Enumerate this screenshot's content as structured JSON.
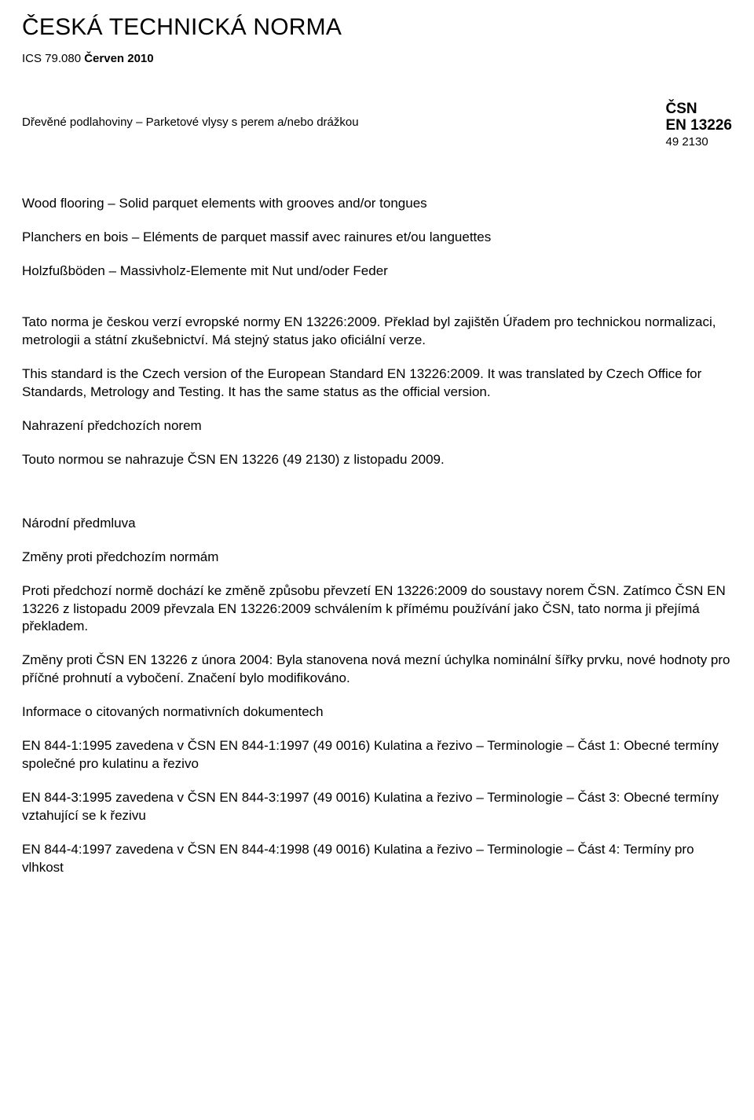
{
  "header": {
    "title": "ČESKÁ TECHNICKÁ NORMA",
    "ics_prefix": "ICS 79.080 ",
    "ics_bold": "Červen 2010",
    "subtitle": "Dřevěné podlahoviny – Parketové vlysy s perem a/nebo drážkou",
    "code_csn": "ČSN",
    "code_en": "EN 13226",
    "code_num": "49 2130"
  },
  "body": {
    "p1": "Wood flooring – Solid parquet elements with grooves and/or tongues",
    "p2": "Planchers en bois – Eléments de parquet massif avec rainures et/ou languettes",
    "p3": "Holzfußböden – Massivholz-Elemente mit Nut und/oder Feder",
    "p4": "Tato norma je českou verzí evropské normy EN 13226:2009. Překlad byl zajištěn Úřadem pro technickou normalizaci, metrologii a státní zkušebnictví. Má stejný status jako oficiální verze.",
    "p5": "This standard is the Czech version of the European Standard EN 13226:2009. It was translated by Czech Office for Standards, Metrology and Testing. It has the same status as the official version.",
    "p6": "Nahrazení předchozích norem",
    "p7": "Touto normou se nahrazuje ČSN EN 13226 (49 2130) z listopadu 2009.",
    "p8": "Národní předmluva",
    "p9": "Změny proti předchozím normám",
    "p10": "Proti předchozí normě dochází ke změně způsobu převzetí EN 13226:2009 do soustavy norem ČSN. Zatímco ČSN EN 13226 z listopadu 2009 převzala EN 13226:2009 schválením k přímému používání jako ČSN, tato norma ji přejímá překladem.",
    "p11": "Změny proti ČSN EN 13226 z února 2004: Byla stanovena nová mezní úchylka nominální šířky prvku, nové hodnoty pro příčné prohnutí a vybočení. Značení bylo modifikováno.",
    "p12": "Informace o citovaných normativních dokumentech",
    "p13": "EN 844-1:1995 zavedena v ČSN EN 844-1:1997 (49 0016) Kulatina a řezivo – Terminologie – Část 1: Obecné termíny společné pro kulatinu a řezivo",
    "p14": "EN 844-3:1995 zavedena v ČSN EN 844-3:1997 (49 0016) Kulatina a řezivo – Terminologie – Část 3: Obecné termíny vztahující se k řezivu",
    "p15": "EN 844-4:1997 zavedena v ČSN EN 844-4:1998 (49 0016) Kulatina a řezivo – Terminologie – Část 4: Termíny pro vlhkost"
  }
}
